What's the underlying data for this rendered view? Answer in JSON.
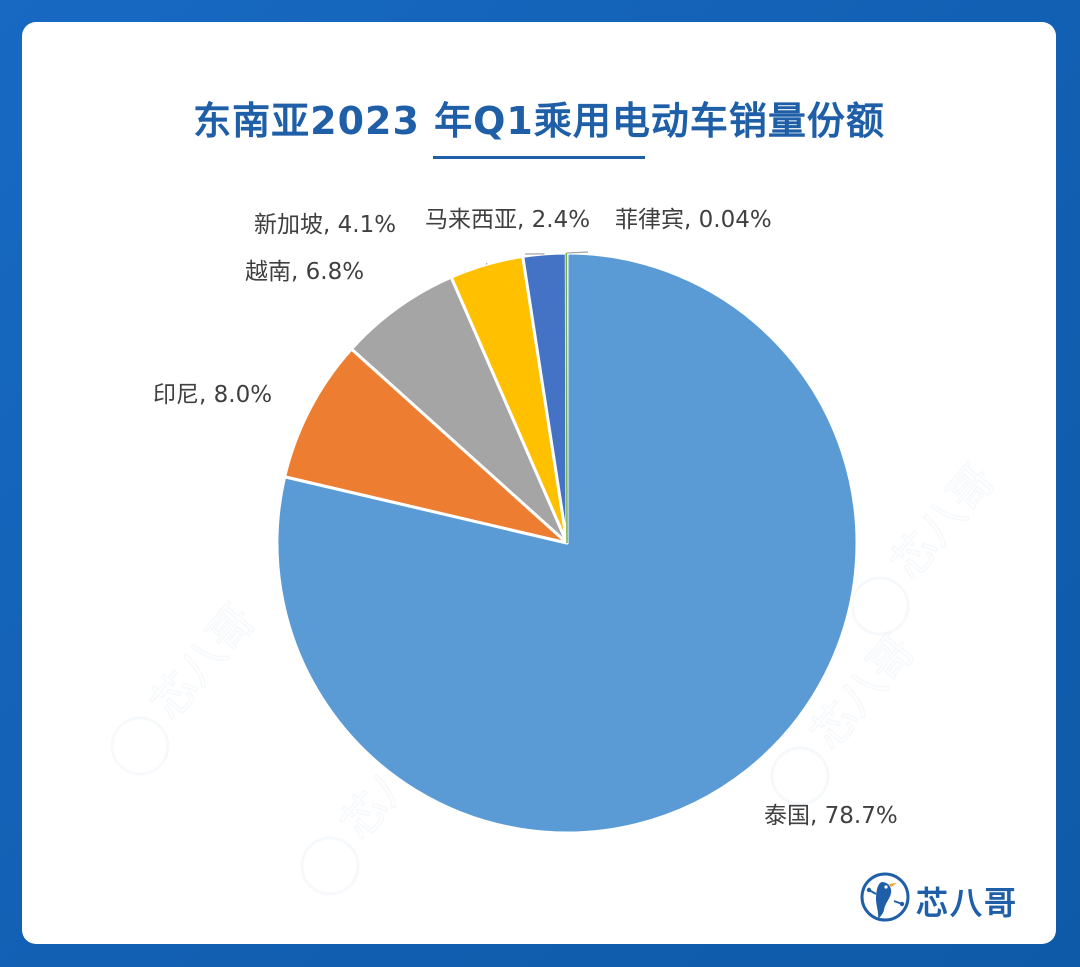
{
  "title": "东南亚2023 年Q1乘用电动车销量份额",
  "brand": {
    "name": "芯八哥",
    "watermark": "芯八哥"
  },
  "colors": {
    "background": "#1565b8",
    "title": "#1f5fa8"
  },
  "chart_data": {
    "type": "pie",
    "title": "东南亚2023 年Q1乘用电动车销量份额",
    "start": "12 o'clock",
    "direction": "clockwise",
    "slices": [
      {
        "label": "泰国, 78.7%",
        "name": "泰国",
        "value": 78.7,
        "color": "#5b9bd5"
      },
      {
        "label": "印尼, 8.0%",
        "name": "印尼",
        "value": 8.0,
        "color": "#ed7d31"
      },
      {
        "label": "越南, 6.8%",
        "name": "越南",
        "value": 6.8,
        "color": "#a5a5a5"
      },
      {
        "label": "新加坡, 4.1%",
        "name": "新加坡",
        "value": 4.1,
        "color": "#ffc000"
      },
      {
        "label": "马来西亚, 2.4%",
        "name": "马来西亚",
        "value": 2.4,
        "color": "#4472c4"
      },
      {
        "label": "菲律宾, 0.04%",
        "name": "菲律宾",
        "value": 0.04,
        "color": "#70ad47"
      }
    ]
  }
}
